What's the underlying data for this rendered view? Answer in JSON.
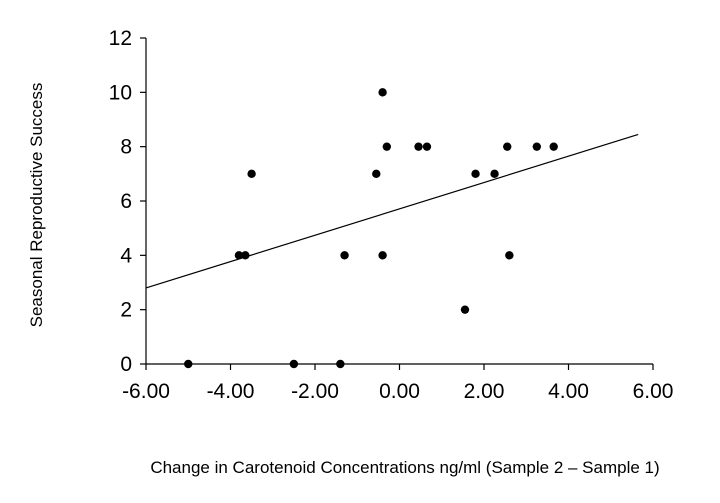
{
  "chart_data": {
    "type": "scatter",
    "title": "",
    "xlabel": "Change in Carotenoid Concentrations ng/ml (Sample 2 – Sample 1)",
    "ylabel": "Seasonal Reproductive Success",
    "xlim": [
      -6,
      6
    ],
    "ylim": [
      0,
      12
    ],
    "x_ticks": [
      "-6.00",
      "-4.00",
      "-2.00",
      "0.00",
      "2.00",
      "4.00",
      "6.00"
    ],
    "y_ticks": [
      "0",
      "2",
      "4",
      "6",
      "8",
      "10",
      "12"
    ],
    "grid": false,
    "legend": "none",
    "points": [
      {
        "x": -5.0,
        "y": 0
      },
      {
        "x": -2.5,
        "y": 0
      },
      {
        "x": -1.4,
        "y": 0
      },
      {
        "x": -3.8,
        "y": 4
      },
      {
        "x": -3.65,
        "y": 4
      },
      {
        "x": -3.5,
        "y": 7
      },
      {
        "x": -1.3,
        "y": 4
      },
      {
        "x": -0.55,
        "y": 7
      },
      {
        "x": -0.4,
        "y": 10
      },
      {
        "x": -0.4,
        "y": 4
      },
      {
        "x": -0.3,
        "y": 8
      },
      {
        "x": 0.45,
        "y": 8
      },
      {
        "x": 0.65,
        "y": 8
      },
      {
        "x": 1.55,
        "y": 2
      },
      {
        "x": 1.8,
        "y": 7
      },
      {
        "x": 2.25,
        "y": 7
      },
      {
        "x": 2.55,
        "y": 8
      },
      {
        "x": 2.6,
        "y": 4
      },
      {
        "x": 3.25,
        "y": 8
      },
      {
        "x": 3.65,
        "y": 8
      }
    ],
    "trendline": {
      "x": [
        -6,
        5.65
      ],
      "y": [
        2.8,
        8.45
      ]
    },
    "colors": {
      "points": "#000000",
      "line": "#000000",
      "axes": "#000000"
    }
  }
}
